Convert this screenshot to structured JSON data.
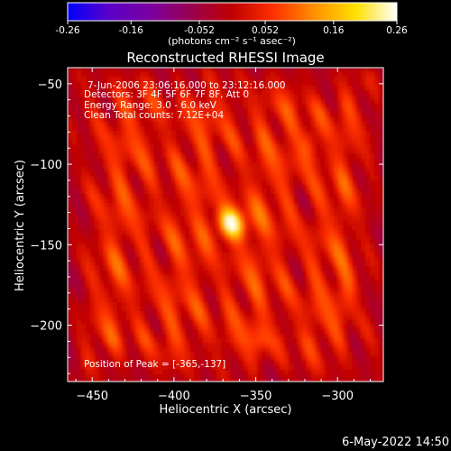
{
  "colorbar": {
    "ticks": [
      "-0.26",
      "-0.16",
      "-0.052",
      "0.052",
      "0.16",
      "0.26"
    ],
    "tick_values": [
      -0.26,
      -0.16,
      -0.052,
      0.052,
      0.16,
      0.26
    ],
    "range": [
      -0.26,
      0.26
    ],
    "unit_label": "(photons cm⁻² s⁻¹ asec⁻²)",
    "colors": [
      "#0000ff",
      "#5a00c8",
      "#7a00a0",
      "#9a0050",
      "#c00000",
      "#ff3000",
      "#ff9000",
      "#ffe000",
      "#ffffff"
    ]
  },
  "chart_data": {
    "type": "heatmap",
    "title": "Reconstructed RHESSI Image",
    "xlabel": "Heliocentric X (arcsec)",
    "ylabel": "Heliocentric Y (arcsec)",
    "xlim": [
      -465,
      -272
    ],
    "ylim": [
      -235,
      -40
    ],
    "xticks": [
      -450,
      -400,
      -350,
      -300
    ],
    "xtick_labels": [
      "−450",
      "−400",
      "−350",
      "−300"
    ],
    "yticks": [
      -50,
      -100,
      -150,
      -200
    ],
    "ytick_labels": [
      "−50",
      "−100",
      "−150",
      "−200"
    ],
    "annotations": [
      "7-Jun-2006 23:06:16.000 to 23:12:16.000",
      "Detectors: 3F 4F 5F 6F 7F 8F, Att 0",
      "Energy Range: 3.0 - 6.0 keV",
      "Clean     Total counts: 7.12E+04"
    ],
    "peak_label": "Position of Peak = [-365,-137]",
    "peak": {
      "x": -365,
      "y": -137,
      "value": 0.26
    },
    "secondary_sources": [
      {
        "x": -318,
        "y": -88,
        "value": 0.13
      },
      {
        "x": -293,
        "y": -178,
        "value": 0.12
      },
      {
        "x": -347,
        "y": -212,
        "value": 0.1
      }
    ],
    "value_range": [
      -0.26,
      0.26
    ]
  },
  "footer": {
    "timestamp": "6-May-2022 14:50"
  }
}
